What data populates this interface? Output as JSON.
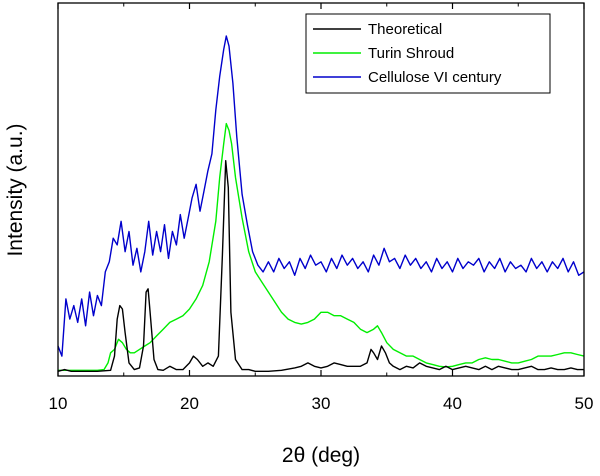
{
  "chart_data": {
    "type": "line",
    "title": "",
    "xlabel": "2θ (deg)",
    "ylabel": "Intensity (a.u.)",
    "xlim": [
      10,
      50
    ],
    "ylim": [
      0,
      100
    ],
    "x_ticks": [
      10,
      20,
      30,
      40,
      50
    ],
    "y_ticks": [],
    "legend_position": "top-right",
    "series": [
      {
        "name": "Theoretical",
        "color": "#000000",
        "points": [
          [
            10,
            0.5
          ],
          [
            10.5,
            1
          ],
          [
            11,
            0.5
          ],
          [
            12,
            0.5
          ],
          [
            13,
            0.5
          ],
          [
            14,
            0.8
          ],
          [
            14.3,
            5
          ],
          [
            14.5,
            16
          ],
          [
            14.7,
            20
          ],
          [
            14.9,
            19
          ],
          [
            15.1,
            12
          ],
          [
            15.4,
            3
          ],
          [
            15.8,
            1
          ],
          [
            16.2,
            1.5
          ],
          [
            16.5,
            8
          ],
          [
            16.7,
            24
          ],
          [
            16.85,
            25
          ],
          [
            17,
            18
          ],
          [
            17.3,
            4
          ],
          [
            17.6,
            1
          ],
          [
            18,
            0.8
          ],
          [
            18.5,
            2
          ],
          [
            19,
            1
          ],
          [
            19.5,
            1
          ],
          [
            20,
            3
          ],
          [
            20.3,
            5
          ],
          [
            20.6,
            4
          ],
          [
            21,
            2
          ],
          [
            21.4,
            3
          ],
          [
            21.8,
            2
          ],
          [
            22.2,
            5
          ],
          [
            22.5,
            35
          ],
          [
            22.75,
            63
          ],
          [
            22.95,
            55
          ],
          [
            23.15,
            18
          ],
          [
            23.5,
            4
          ],
          [
            24,
            1
          ],
          [
            24.5,
            1
          ],
          [
            25,
            0.5
          ],
          [
            26,
            0.5
          ],
          [
            27,
            0.8
          ],
          [
            28,
            1.5
          ],
          [
            28.5,
            2
          ],
          [
            29,
            3
          ],
          [
            29.5,
            2
          ],
          [
            30,
            1.5
          ],
          [
            30.5,
            2
          ],
          [
            31,
            3
          ],
          [
            31.5,
            2.5
          ],
          [
            32,
            2
          ],
          [
            32.5,
            2
          ],
          [
            33,
            2
          ],
          [
            33.5,
            3
          ],
          [
            33.8,
            7
          ],
          [
            34,
            6
          ],
          [
            34.3,
            4
          ],
          [
            34.6,
            8
          ],
          [
            34.9,
            6
          ],
          [
            35.2,
            3
          ],
          [
            35.5,
            2
          ],
          [
            36,
            1
          ],
          [
            36.5,
            2
          ],
          [
            37,
            1.5
          ],
          [
            37.5,
            3
          ],
          [
            38,
            2
          ],
          [
            38.5,
            1.5
          ],
          [
            39,
            1
          ],
          [
            39.5,
            2
          ],
          [
            40,
            1
          ],
          [
            40.5,
            1.5
          ],
          [
            41,
            2
          ],
          [
            41.5,
            1.5
          ],
          [
            42,
            1
          ],
          [
            42.5,
            2
          ],
          [
            43,
            1
          ],
          [
            43.5,
            2
          ],
          [
            44,
            1.5
          ],
          [
            44.5,
            1
          ],
          [
            45,
            1
          ],
          [
            45.5,
            1.5
          ],
          [
            46,
            2
          ],
          [
            46.5,
            1
          ],
          [
            47,
            1
          ],
          [
            47.5,
            1.5
          ],
          [
            48,
            1
          ],
          [
            48.5,
            1
          ],
          [
            49,
            1.5
          ],
          [
            49.5,
            1
          ],
          [
            50,
            1
          ]
        ]
      },
      {
        "name": "Turin Shroud",
        "color": "#00ee00",
        "points": [
          [
            10,
            0.8
          ],
          [
            11,
            0.8
          ],
          [
            12,
            0.8
          ],
          [
            13,
            0.8
          ],
          [
            13.5,
            1
          ],
          [
            13.8,
            3
          ],
          [
            14,
            6
          ],
          [
            14.3,
            7
          ],
          [
            14.6,
            10
          ],
          [
            14.9,
            9
          ],
          [
            15.2,
            7
          ],
          [
            15.5,
            6
          ],
          [
            15.8,
            6
          ],
          [
            16.2,
            7
          ],
          [
            16.6,
            8
          ],
          [
            17,
            9
          ],
          [
            17.5,
            11
          ],
          [
            18,
            13
          ],
          [
            18.5,
            15
          ],
          [
            19,
            16
          ],
          [
            19.5,
            17
          ],
          [
            20,
            19
          ],
          [
            20.5,
            22
          ],
          [
            21,
            26
          ],
          [
            21.5,
            33
          ],
          [
            22,
            45
          ],
          [
            22.3,
            58
          ],
          [
            22.6,
            68
          ],
          [
            22.8,
            74
          ],
          [
            23.0,
            72
          ],
          [
            23.2,
            68
          ],
          [
            23.5,
            58
          ],
          [
            24,
            46
          ],
          [
            24.5,
            36
          ],
          [
            25,
            30
          ],
          [
            25.5,
            27
          ],
          [
            26,
            24
          ],
          [
            26.5,
            21
          ],
          [
            27,
            18
          ],
          [
            27.5,
            16
          ],
          [
            28,
            15
          ],
          [
            28.5,
            14.5
          ],
          [
            29,
            15
          ],
          [
            29.5,
            16
          ],
          [
            30,
            18
          ],
          [
            30.5,
            18
          ],
          [
            31,
            17
          ],
          [
            31.5,
            17
          ],
          [
            32,
            16
          ],
          [
            32.5,
            15
          ],
          [
            33,
            13
          ],
          [
            33.5,
            12
          ],
          [
            34,
            13
          ],
          [
            34.3,
            14
          ],
          [
            34.6,
            12
          ],
          [
            35,
            9
          ],
          [
            35.5,
            7
          ],
          [
            36,
            6
          ],
          [
            36.5,
            5
          ],
          [
            37,
            5
          ],
          [
            37.5,
            4
          ],
          [
            38,
            3
          ],
          [
            38.5,
            2.5
          ],
          [
            39,
            2
          ],
          [
            39.5,
            1.8
          ],
          [
            40,
            2
          ],
          [
            40.5,
            2.5
          ],
          [
            41,
            3
          ],
          [
            41.5,
            3
          ],
          [
            42,
            4
          ],
          [
            42.5,
            4.5
          ],
          [
            43,
            4
          ],
          [
            43.5,
            4
          ],
          [
            44,
            3.5
          ],
          [
            44.5,
            3
          ],
          [
            45,
            3
          ],
          [
            45.5,
            3.5
          ],
          [
            46,
            4
          ],
          [
            46.5,
            5
          ],
          [
            47,
            5
          ],
          [
            47.5,
            5
          ],
          [
            48,
            5.5
          ],
          [
            48.5,
            6
          ],
          [
            49,
            6
          ],
          [
            49.5,
            5.5
          ],
          [
            50,
            5
          ]
        ]
      },
      {
        "name": "Cellulose VI century",
        "color": "#0000cc",
        "points": [
          [
            10,
            8
          ],
          [
            10.3,
            5
          ],
          [
            10.6,
            22
          ],
          [
            10.9,
            16
          ],
          [
            11.2,
            20
          ],
          [
            11.5,
            15
          ],
          [
            11.8,
            22
          ],
          [
            12.1,
            14
          ],
          [
            12.4,
            24
          ],
          [
            12.7,
            17
          ],
          [
            13,
            23
          ],
          [
            13.3,
            20
          ],
          [
            13.6,
            30
          ],
          [
            13.9,
            33
          ],
          [
            14.2,
            40
          ],
          [
            14.5,
            38
          ],
          [
            14.8,
            45
          ],
          [
            15.1,
            36
          ],
          [
            15.4,
            42
          ],
          [
            15.7,
            32
          ],
          [
            16,
            37
          ],
          [
            16.3,
            30
          ],
          [
            16.6,
            36
          ],
          [
            16.9,
            45
          ],
          [
            17.2,
            35
          ],
          [
            17.5,
            42
          ],
          [
            17.8,
            36
          ],
          [
            18.1,
            44
          ],
          [
            18.4,
            34
          ],
          [
            18.7,
            42
          ],
          [
            19,
            38
          ],
          [
            19.3,
            47
          ],
          [
            19.6,
            40
          ],
          [
            19.9,
            46
          ],
          [
            20.2,
            52
          ],
          [
            20.5,
            56
          ],
          [
            20.8,
            48
          ],
          [
            21.1,
            54
          ],
          [
            21.4,
            60
          ],
          [
            21.7,
            65
          ],
          [
            22,
            78
          ],
          [
            22.3,
            88
          ],
          [
            22.6,
            96
          ],
          [
            22.8,
            100
          ],
          [
            23.0,
            97
          ],
          [
            23.3,
            86
          ],
          [
            23.6,
            70
          ],
          [
            24,
            53
          ],
          [
            24.4,
            44
          ],
          [
            24.8,
            36
          ],
          [
            25.2,
            32
          ],
          [
            25.6,
            30
          ],
          [
            26,
            33
          ],
          [
            26.4,
            30
          ],
          [
            26.8,
            34
          ],
          [
            27.2,
            31
          ],
          [
            27.6,
            33
          ],
          [
            28,
            29
          ],
          [
            28.4,
            34
          ],
          [
            28.8,
            31
          ],
          [
            29.2,
            35
          ],
          [
            29.6,
            32
          ],
          [
            30,
            33
          ],
          [
            30.4,
            30
          ],
          [
            30.8,
            34
          ],
          [
            31.2,
            31
          ],
          [
            31.6,
            35
          ],
          [
            32,
            32
          ],
          [
            32.4,
            34
          ],
          [
            32.8,
            31
          ],
          [
            33.2,
            33
          ],
          [
            33.6,
            30
          ],
          [
            34,
            35
          ],
          [
            34.4,
            32
          ],
          [
            34.8,
            37
          ],
          [
            35.2,
            33
          ],
          [
            35.6,
            34
          ],
          [
            36,
            31
          ],
          [
            36.4,
            35
          ],
          [
            36.8,
            32
          ],
          [
            37.2,
            34
          ],
          [
            37.6,
            31
          ],
          [
            38,
            33
          ],
          [
            38.4,
            30
          ],
          [
            38.8,
            34
          ],
          [
            39.2,
            31
          ],
          [
            39.6,
            33
          ],
          [
            40,
            30
          ],
          [
            40.4,
            34
          ],
          [
            40.8,
            31
          ],
          [
            41.2,
            33
          ],
          [
            41.6,
            32
          ],
          [
            42,
            34
          ],
          [
            42.4,
            30
          ],
          [
            42.8,
            33
          ],
          [
            43.2,
            31
          ],
          [
            43.6,
            34
          ],
          [
            44,
            30
          ],
          [
            44.4,
            33
          ],
          [
            44.8,
            31
          ],
          [
            45.2,
            32
          ],
          [
            45.6,
            30
          ],
          [
            46,
            34
          ],
          [
            46.4,
            31
          ],
          [
            46.8,
            33
          ],
          [
            47.2,
            30
          ],
          [
            47.6,
            33
          ],
          [
            48,
            31
          ],
          [
            48.4,
            34
          ],
          [
            48.8,
            30
          ],
          [
            49.2,
            33
          ],
          [
            49.6,
            29
          ],
          [
            50,
            30
          ]
        ]
      }
    ]
  }
}
